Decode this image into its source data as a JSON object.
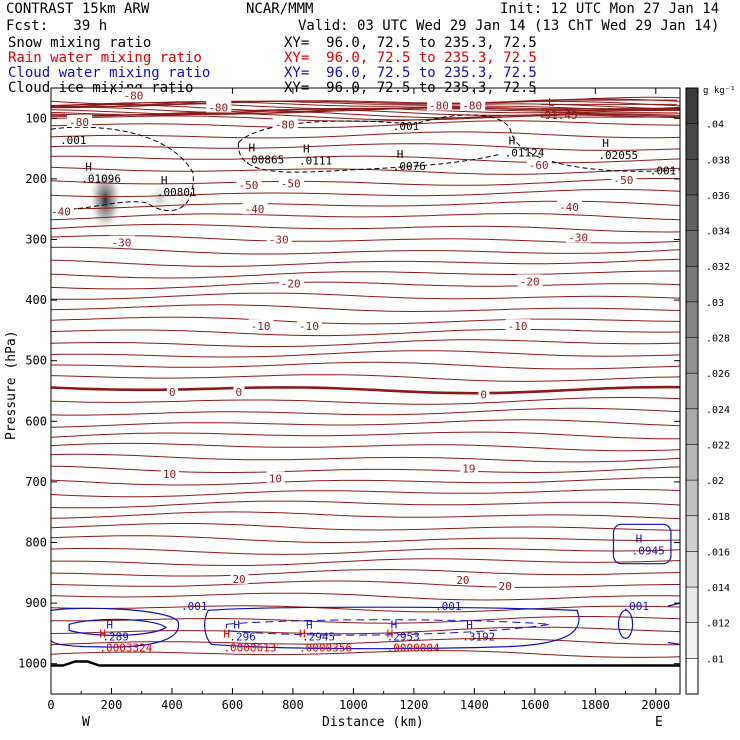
{
  "header": {
    "model": "CONTRAST 15km ARW",
    "org": "NCAR/MMM",
    "init": "Init: 12 UTC Mon 27 Jan 14",
    "fcst": "Fcst:   39 h",
    "valid": "Valid: 03 UTC Wed 29 Jan 14 (13 ChT Wed 29 Jan 14)",
    "fields": [
      {
        "name": "Snow mixing ratio",
        "xy": "XY=  96.0, 72.5 to 235.3, 72.5",
        "color": "#000000"
      },
      {
        "name": "Rain water mixing ratio",
        "xy": "XY=  96.0, 72.5 to 235.3, 72.5",
        "color": "#e00000"
      },
      {
        "name": "Cloud water mixing ratio",
        "xy": "XY=  96.0, 72.5 to 235.3, 72.5",
        "color": "#1010c0"
      },
      {
        "name": "Cloud ice mixing ratio",
        "xy": "XY=  96.0, 72.5 to 235.3, 72.5",
        "color": "#000000"
      }
    ]
  },
  "chart_data": {
    "type": "contour",
    "xlabel": "Distance (km)",
    "ylabel": "Pressure (hPa)",
    "xlim": [
      0,
      2080
    ],
    "ylim": [
      1050,
      50
    ],
    "x_ticks": [
      "0",
      "200",
      "400",
      "600",
      "800",
      "1000",
      "1200",
      "1400",
      "1600",
      "1800",
      "2000"
    ],
    "y_ticks": [
      "100",
      "200",
      "300",
      "400",
      "500",
      "600",
      "700",
      "800",
      "900",
      "1000"
    ],
    "x_ends": {
      "left": "W",
      "right": "E"
    },
    "colorbar": {
      "unit": "g kg⁻¹",
      "ticks": [
        ".01",
        ".012",
        ".014",
        ".016",
        ".018",
        ".02",
        ".022",
        ".024",
        ".026",
        ".028",
        ".03",
        ".032",
        ".034",
        ".036",
        ".038",
        ".04"
      ]
    },
    "temperature_contour_labels": [
      {
        "text": "-80",
        "x": 520,
        "p": 82
      },
      {
        "text": "-80",
        "x": 240,
        "p": 62
      },
      {
        "text": "-80",
        "x": 1250,
        "p": 79
      },
      {
        "text": "-80",
        "x": 1360,
        "p": 79
      },
      {
        "text": "-80",
        "x": 60,
        "p": 106
      },
      {
        "text": "-80",
        "x": 740,
        "p": 110
      },
      {
        "text": "-60",
        "x": 1580,
        "p": 177
      },
      {
        "text": "-50",
        "x": 620,
        "p": 210
      },
      {
        "text": "-50",
        "x": 760,
        "p": 208
      },
      {
        "text": "-50",
        "x": 1860,
        "p": 202
      },
      {
        "text": "-40",
        "x": 0,
        "p": 254
      },
      {
        "text": "-40",
        "x": 640,
        "p": 250
      },
      {
        "text": "-40",
        "x": 1680,
        "p": 246
      },
      {
        "text": "-30",
        "x": 200,
        "p": 305
      },
      {
        "text": "-30",
        "x": 720,
        "p": 300
      },
      {
        "text": "-30",
        "x": 1710,
        "p": 297
      },
      {
        "text": "-20",
        "x": 760,
        "p": 373
      },
      {
        "text": "-20",
        "x": 1550,
        "p": 369
      },
      {
        "text": "-10",
        "x": 660,
        "p": 443
      },
      {
        "text": "-10",
        "x": 820,
        "p": 443
      },
      {
        "text": "-10",
        "x": 1510,
        "p": 443
      },
      {
        "text": "0",
        "x": 390,
        "p": 552
      },
      {
        "text": "0",
        "x": 610,
        "p": 552
      },
      {
        "text": "0",
        "x": 1420,
        "p": 556
      },
      {
        "text": "10",
        "x": 370,
        "p": 687
      },
      {
        "text": "10",
        "x": 720,
        "p": 694
      },
      {
        "text": "19",
        "x": 1360,
        "p": 678
      },
      {
        "text": "20",
        "x": 600,
        "p": 860
      },
      {
        "text": "20",
        "x": 1340,
        "p": 862
      },
      {
        "text": "20",
        "x": 1480,
        "p": 872
      }
    ],
    "highs": [
      {
        "label": "H",
        "value": ".01096",
        "x": 100,
        "p": 196
      },
      {
        "label": "H",
        "value": ".00801",
        "x": 350,
        "p": 218
      },
      {
        "label": "H",
        "value": ".00865",
        "x": 640,
        "p": 165
      },
      {
        "label": "H",
        "value": ".0111",
        "x": 820,
        "p": 166
      },
      {
        "label": "H",
        "value": ".0076",
        "x": 1130,
        "p": 175
      },
      {
        "label": "H",
        "value": ".01124",
        "x": 1500,
        "p": 153
      },
      {
        "label": "H",
        "value": ".02055",
        "x": 1810,
        "p": 157
      },
      {
        "label": "H",
        "value": ".0945",
        "x": 1920,
        "p": 810
      },
      {
        "label": "H",
        "value": ".289",
        "x": 170,
        "p": 952
      },
      {
        "label": "H",
        "value": ".296",
        "x": 590,
        "p": 952
      },
      {
        "label": "H",
        "value": ".2945",
        "x": 830,
        "p": 952
      },
      {
        "label": "H",
        "value": ".2953",
        "x": 1110,
        "p": 952
      },
      {
        "label": "H",
        "value": ".3192",
        "x": 1360,
        "p": 952
      }
    ],
    "lows": [
      {
        "label": "L",
        "value": "-91.45",
        "x": 1610,
        "p": 86
      }
    ],
    "rain_values": [
      ".0003324",
      ".0000613",
      ".0000356",
      ".0000004"
    ],
    "cloud_water_contour_labels": [
      ".001",
      ".001",
      ".001"
    ],
    "cloud_ice_contour_labels": [
      ".001",
      ".001",
      ".001"
    ]
  }
}
